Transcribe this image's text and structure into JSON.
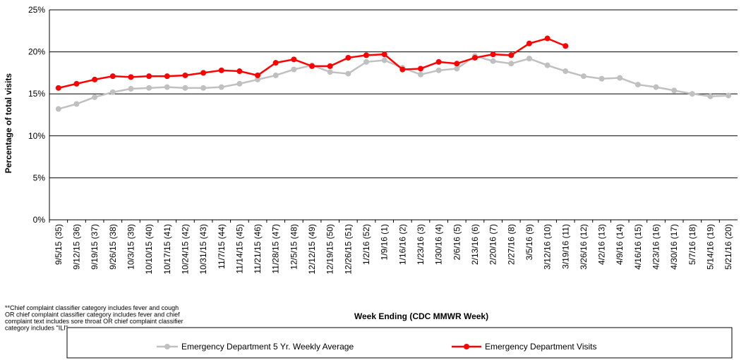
{
  "chart_data": {
    "type": "line",
    "xlabel": "Week Ending (CDC MMWR Week)",
    "ylabel": "Percentage of total visits",
    "footnote": [
      "**Chief complaint classifier category includes fever and cough",
      "OR chief complaint classifier category includes fever and chief",
      "complaint text includes sore throat OR chief complaint classifier",
      "category includes \"ILI\""
    ],
    "categories": [
      "9/5/15 (35)",
      "9/12/15 (36)",
      "9/19/15 (37)",
      "9/26/15 (38)",
      "10/3/15 (39)",
      "10/10/15 (40)",
      "10/17/15 (41)",
      "10/24/15 (42)",
      "10/31/15 (43)",
      "11/7/15 (44)",
      "11/14/15 (45)",
      "11/21/15 (46)",
      "11/28/15 (47)",
      "12/5/15 (48)",
      "12/12/15 (49)",
      "12/19/15 (50)",
      "12/26/15 (51)",
      "1/2/16 (52)",
      "1/9/16 (1)",
      "1/16/16 (2)",
      "1/23/16 (3)",
      "1/30/16 (4)",
      "2/6/16 (5)",
      "2/13/16 (6)",
      "2/20/16 (7)",
      "2/27/16 (8)",
      "3/5/16 (9)",
      "3/12/16 (10)",
      "3/19/16 (11)",
      "3/26/16 (12)",
      "4/2/16 (13)",
      "4/9/16 (14)",
      "4/16/16 (15)",
      "4/23/16 (16)",
      "4/30/16 (17)",
      "5/7/16 (18)",
      "5/14/16 (19)",
      "5/21/16 (20)"
    ],
    "series": [
      {
        "name": "Emergency Department 5 Yr. Weekly Average",
        "color": "#c0c0c0",
        "values": [
          13.2,
          13.8,
          14.6,
          15.2,
          15.6,
          15.7,
          15.8,
          15.7,
          15.7,
          15.8,
          16.2,
          16.7,
          17.2,
          17.9,
          18.4,
          17.6,
          17.4,
          18.8,
          19.0,
          18.1,
          17.3,
          17.8,
          18.0,
          19.5,
          18.9,
          18.6,
          19.2,
          18.4,
          17.7,
          17.1,
          16.8,
          16.9,
          16.1,
          15.8,
          15.4,
          15.0,
          14.7,
          14.8
        ]
      },
      {
        "name": "Emergency Department Visits",
        "color": "#ff0000",
        "values": [
          15.7,
          16.2,
          16.7,
          17.1,
          17.0,
          17.1,
          17.1,
          17.2,
          17.5,
          17.8,
          17.7,
          17.2,
          18.7,
          19.1,
          18.3,
          18.3,
          19.3,
          19.6,
          19.7,
          17.9,
          18.0,
          18.8,
          18.6,
          19.3,
          19.7,
          19.6,
          21.0,
          21.6,
          20.7,
          null,
          null,
          null,
          null,
          null,
          null,
          null,
          null,
          null
        ]
      }
    ],
    "ylim": [
      0,
      25
    ],
    "yticks": [
      {
        "value": 0,
        "label": "0%"
      },
      {
        "value": 5,
        "label": "5%"
      },
      {
        "value": 10,
        "label": "10%"
      },
      {
        "value": 15,
        "label": "15%"
      },
      {
        "value": 20,
        "label": "20%"
      },
      {
        "value": 25,
        "label": "25%"
      }
    ],
    "grid": true
  }
}
